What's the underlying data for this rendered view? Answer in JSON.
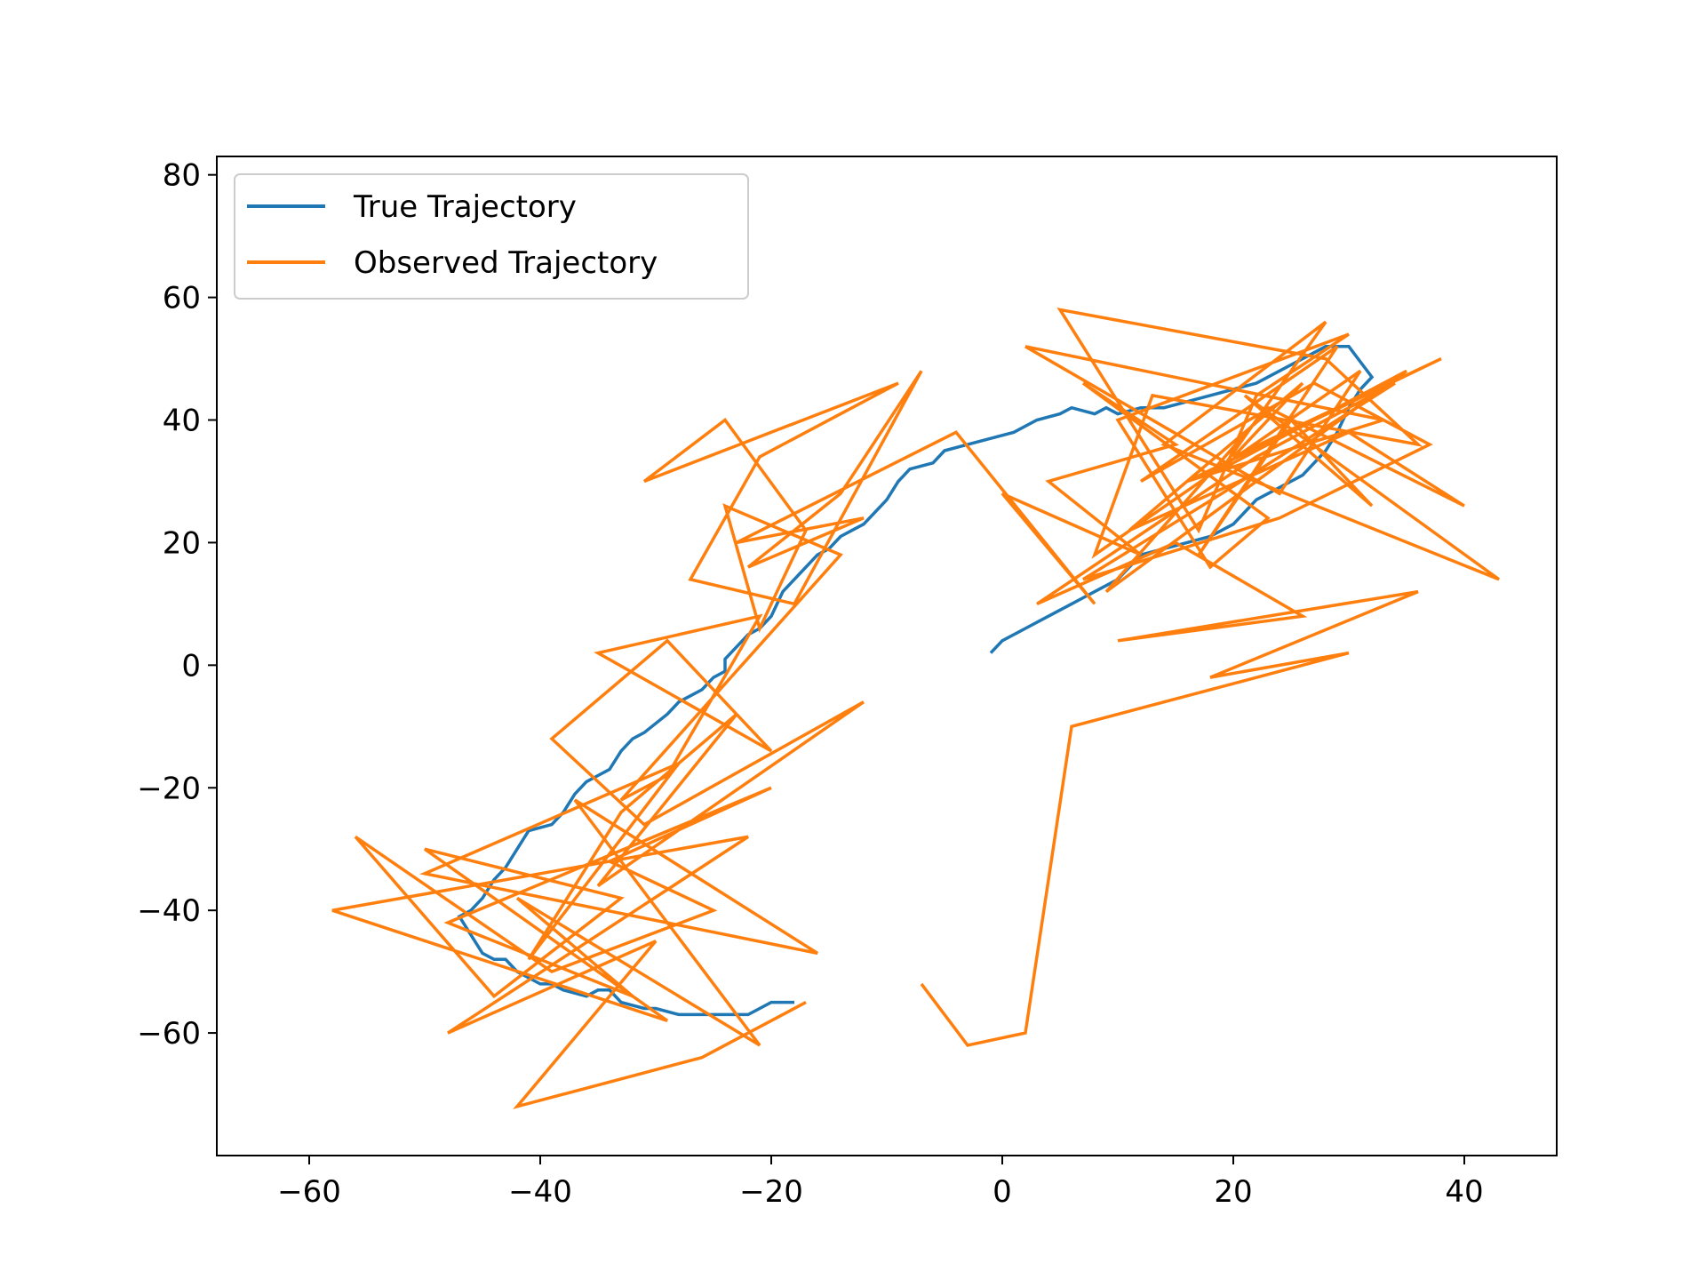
{
  "chart_data": {
    "type": "line",
    "title": "",
    "xlabel": "",
    "ylabel": "",
    "xlim": [
      -68,
      48
    ],
    "ylim": [
      -80,
      83
    ],
    "xticks": [
      -60,
      -40,
      -20,
      0,
      20,
      40
    ],
    "yticks": [
      -60,
      -40,
      -20,
      0,
      20,
      40,
      60,
      80
    ],
    "xtick_labels": [
      "−60",
      "−40",
      "−20",
      "0",
      "20",
      "40"
    ],
    "ytick_labels": [
      "−60",
      "−40",
      "−20",
      "0",
      "20",
      "40",
      "60",
      "80"
    ],
    "grid": false,
    "legend_position": "upper-left",
    "series": [
      {
        "name": "True Trajectory",
        "color": "#1f77b4",
        "x": [
          -18,
          -20,
          -21,
          -22,
          -24,
          -26,
          -28,
          -30,
          -31,
          -33,
          -34,
          -35,
          -36,
          -38,
          -39,
          -40,
          -41,
          -42,
          -43,
          -44,
          -45,
          -46,
          -47,
          -46,
          -45,
          -44,
          -43,
          -42,
          -41,
          -39,
          -38,
          -37,
          -36,
          -35,
          -34,
          -33,
          -32,
          -31,
          -29,
          -28,
          -27,
          -26,
          -25,
          -24,
          -24,
          -23,
          -22,
          -21,
          -20,
          -19,
          -17,
          -16,
          -15,
          -14,
          -13,
          -12,
          -11,
          -10,
          -9,
          -8,
          -6,
          -5,
          -3,
          -1,
          1,
          3,
          5,
          6,
          8,
          9,
          10,
          12,
          14,
          16,
          18,
          20,
          22,
          24,
          26,
          28,
          30,
          32,
          31,
          30,
          29,
          28,
          27,
          26,
          25,
          24,
          23,
          22,
          21,
          20,
          19,
          18,
          16,
          14,
          12,
          11,
          10,
          9,
          8,
          7,
          6,
          5,
          4,
          2,
          0,
          -1
        ],
        "y": [
          -55,
          -55,
          -56,
          -57,
          -57,
          -57,
          -57,
          -56,
          -56,
          -55,
          -53,
          -53,
          -54,
          -53,
          -52,
          -52,
          -51,
          -50,
          -48,
          -48,
          -47,
          -44,
          -41,
          -40,
          -38,
          -35,
          -33,
          -30,
          -27,
          -26,
          -24,
          -21,
          -19,
          -18,
          -17,
          -14,
          -12,
          -11,
          -8,
          -6,
          -5,
          -4,
          -2,
          -1,
          1,
          3,
          5,
          6,
          8,
          12,
          16,
          18,
          19,
          21,
          22,
          23,
          25,
          27,
          30,
          32,
          33,
          35,
          36,
          37,
          38,
          40,
          41,
          42,
          41,
          42,
          41,
          42,
          42,
          43,
          44,
          45,
          46,
          48,
          50,
          52,
          52,
          47,
          45,
          42,
          38,
          35,
          33,
          31,
          30,
          29,
          28,
          27,
          25,
          23,
          22,
          21,
          20,
          19,
          18,
          16,
          14,
          13,
          12,
          11,
          10,
          9,
          8,
          6,
          4,
          2
        ]
      },
      {
        "name": "Observed Trajectory",
        "color": "#ff7f0e",
        "x": [
          -17,
          -26,
          -42,
          -30,
          -48,
          -22,
          -58,
          -29,
          -50,
          -33,
          -44,
          -56,
          -39,
          -25,
          -34,
          -20,
          -48,
          -32,
          -42,
          -21,
          -37,
          -16,
          -50,
          -28,
          -41,
          -33,
          -23,
          -35,
          -12,
          -31,
          -39,
          -29,
          -20,
          -35,
          -21,
          -29,
          -33,
          -14,
          -24,
          -21,
          -17,
          -24,
          -31,
          -9,
          -21,
          -27,
          -18,
          -7,
          -14,
          -22,
          -12,
          -23,
          -4,
          8,
          0,
          12,
          4,
          15,
          7,
          23,
          18,
          10,
          30,
          22,
          17,
          5,
          28,
          36,
          13,
          8,
          31,
          24,
          2,
          33,
          16,
          38,
          20,
          26,
          11,
          30,
          40,
          23,
          9,
          35,
          19,
          28,
          14,
          43,
          21,
          32,
          25,
          17,
          29,
          12,
          27,
          37,
          24,
          7,
          19,
          34,
          22,
          3,
          15,
          26,
          10,
          36,
          18,
          30,
          6,
          2,
          -3,
          -7
        ],
        "y": [
          -55,
          -64,
          -72,
          -45,
          -60,
          -28,
          -40,
          -58,
          -30,
          -38,
          -54,
          -28,
          -50,
          -40,
          -32,
          -20,
          -42,
          -54,
          -38,
          -62,
          -22,
          -47,
          -34,
          -16,
          -48,
          -24,
          -8,
          -36,
          -6,
          -26,
          -12,
          4,
          -14,
          2,
          8,
          -18,
          -22,
          18,
          26,
          6,
          22,
          40,
          30,
          46,
          34,
          14,
          10,
          48,
          28,
          16,
          24,
          20,
          38,
          10,
          28,
          18,
          30,
          36,
          46,
          24,
          16,
          40,
          54,
          44,
          22,
          58,
          50,
          36,
          44,
          18,
          48,
          28,
          52,
          40,
          30,
          50,
          34,
          46,
          22,
          38,
          26,
          42,
          12,
          48,
          32,
          56,
          36,
          14,
          44,
          26,
          40,
          18,
          52,
          30,
          46,
          36,
          24,
          14,
          28,
          46,
          34,
          10,
          20,
          8,
          4,
          12,
          -2,
          2,
          -10,
          -60,
          -62,
          -52
        ]
      }
    ]
  }
}
